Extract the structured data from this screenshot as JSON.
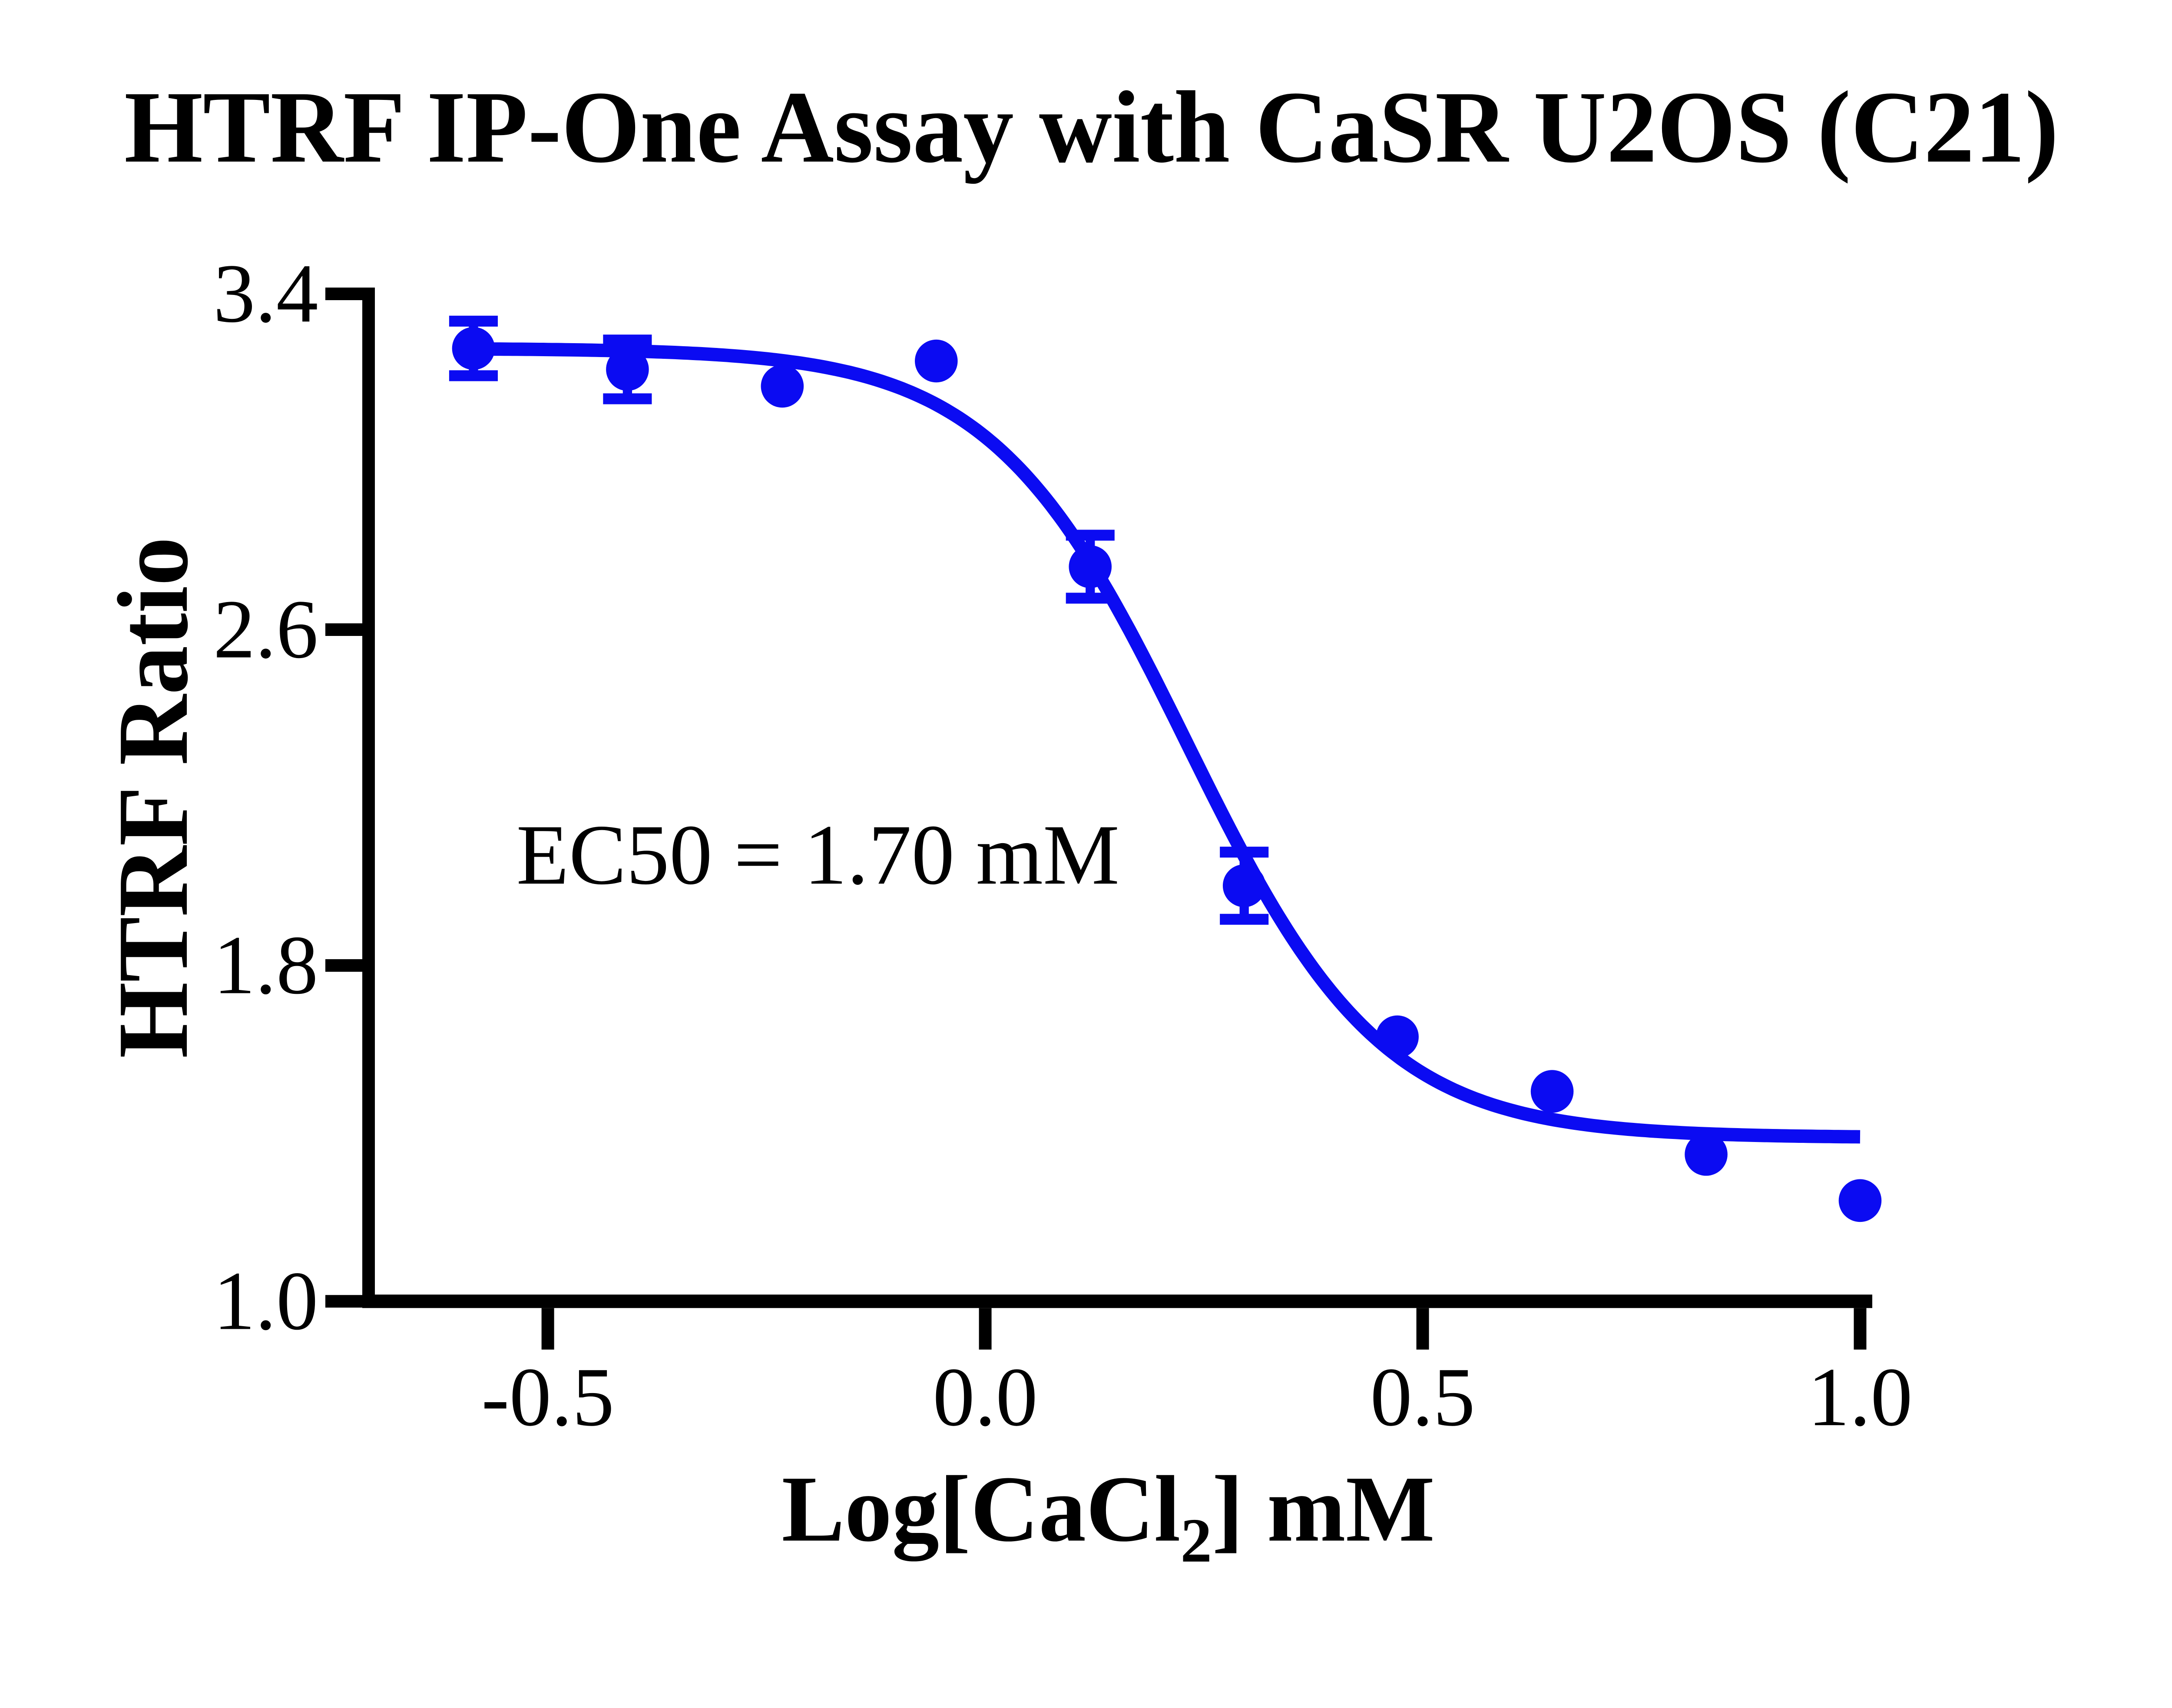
{
  "chart_data": {
    "type": "scatter",
    "title": "HTRF IP-One Assay with CaSR U2OS（C21）",
    "xlabel": {
      "pre": "Log[CaCl",
      "sub": "2",
      "post": "] mM"
    },
    "ylabel": "HTRF Ratio",
    "annotation": "EC50 = 1.70 mM",
    "legend_position": "none",
    "grid": false,
    "xlim": [
      -0.72,
      1.01
    ],
    "ylim": [
      1.0,
      3.4
    ],
    "x_ticks": [
      {
        "value": -0.5,
        "label": "-0.5"
      },
      {
        "value": 0.0,
        "label": "0.0"
      },
      {
        "value": 0.5,
        "label": "0.5"
      },
      {
        "value": 1.0,
        "label": "1.0"
      }
    ],
    "y_ticks": [
      {
        "value": 3.4,
        "label": "3.4"
      },
      {
        "value": 2.6,
        "label": "2.6"
      },
      {
        "value": 1.8,
        "label": "1.8"
      },
      {
        "value": 1.0,
        "label": "1.0"
      }
    ],
    "series": [
      {
        "name": "CaSR U2OS (C21)",
        "marker": "circle",
        "color": "#0b0bf2",
        "points": [
          {
            "x": -0.585,
            "y": 3.27,
            "err": 0.065
          },
          {
            "x": -0.409,
            "y": 3.22,
            "err": 0.07
          },
          {
            "x": -0.232,
            "y": 3.18,
            "err": null
          },
          {
            "x": -0.056,
            "y": 3.24,
            "err": null
          },
          {
            "x": 0.12,
            "y": 2.75,
            "err": 0.075
          },
          {
            "x": 0.296,
            "y": 1.99,
            "err": 0.08
          },
          {
            "x": 0.471,
            "y": 1.63,
            "err": null
          },
          {
            "x": 0.648,
            "y": 1.5,
            "err": null
          },
          {
            "x": 0.824,
            "y": 1.35,
            "err": null
          },
          {
            "x": 1.0,
            "y": 1.24,
            "err": null
          }
        ]
      }
    ],
    "fit_curve": {
      "model": "4PL sigmoidal dose-response",
      "top": 3.27,
      "bottom": 1.39,
      "log_ec50": 0.2304,
      "ec50_mM": 1.7,
      "hill_slope": 3.9,
      "x_start": -0.585,
      "x_end": 1.0,
      "color": "#0b0bf2"
    }
  }
}
